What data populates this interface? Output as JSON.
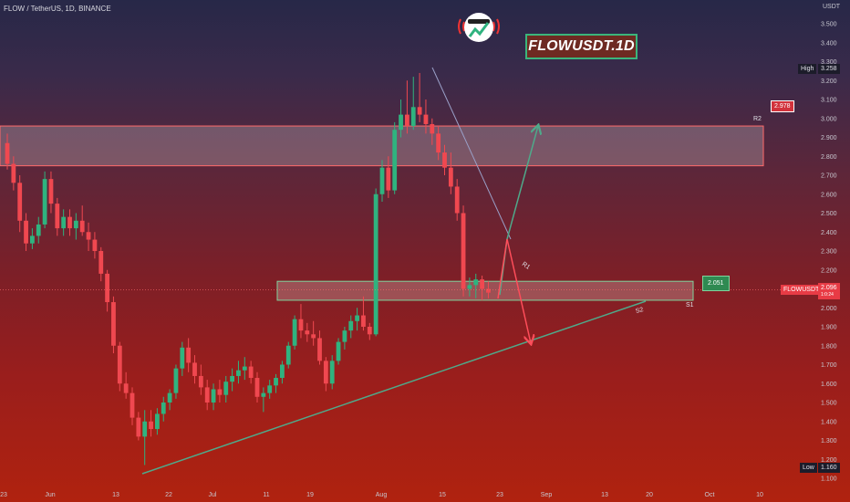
{
  "header": {
    "title": "FLOW / TetherUS, 1D, BINANCE"
  },
  "badge": {
    "text": "FLOWUSDT.1D"
  },
  "axis": {
    "unit": "USDT",
    "y_ticks": [
      "1.100",
      "1.200",
      "1.300",
      "1.400",
      "1.500",
      "1.600",
      "1.700",
      "1.800",
      "1.900",
      "2.000",
      "2.100",
      "2.200",
      "2.300",
      "2.400",
      "2.500",
      "2.600",
      "2.700",
      "2.800",
      "2.900",
      "3.000",
      "3.100",
      "3.200",
      "3.300",
      "3.400",
      "3.500"
    ],
    "x_ticks": [
      "23",
      "Jun",
      "13",
      "22",
      "Jul",
      "11",
      "19",
      "Aug",
      "15",
      "23",
      "Sep",
      "13",
      "20",
      "Oct",
      "10"
    ]
  },
  "markers": {
    "high_label": "High",
    "high_value": "3.258",
    "low_label": "Low",
    "low_value": "1.160",
    "symbol_tag": "FLOWUSDT",
    "last_price": "2.096",
    "last_price_sub": "1:0:24",
    "r2_label": "R2",
    "r2_value": "2.978",
    "s1_label": "S1",
    "s1_value": "2.051",
    "s2_label": "S2",
    "r1_label": "R1"
  },
  "colors": {
    "up": "#2fb37f",
    "down": "#f04850",
    "zone_fill": "#ffffff",
    "trend": "#4fa98a",
    "arrow_up": "#4fa98a",
    "arrow_down": "#ff4d5a"
  },
  "chart_data": {
    "type": "candlestick",
    "title": "FLOW / TetherUS, 1D, BINANCE",
    "ylabel": "USDT",
    "ylim": [
      1.1,
      3.5
    ],
    "scale": "linear",
    "grid": false,
    "price_high": 3.258,
    "price_low": 1.16,
    "last_price": 2.096,
    "zones": [
      {
        "name": "R2 resistance",
        "from": 2.75,
        "to": 2.96
      },
      {
        "name": "S1 support",
        "from": 2.04,
        "to": 2.14
      }
    ],
    "levels": {
      "R2": 2.978,
      "S1": 2.051
    },
    "series": [
      {
        "ohlc": [
          [
            2.87,
            2.92,
            2.73,
            2.76
          ],
          [
            2.76,
            2.8,
            2.62,
            2.66
          ],
          [
            2.66,
            2.7,
            2.4,
            2.46
          ],
          [
            2.46,
            2.5,
            2.3,
            2.34
          ],
          [
            2.34,
            2.42,
            2.31,
            2.38
          ],
          [
            2.38,
            2.48,
            2.34,
            2.44
          ],
          [
            2.44,
            2.72,
            2.42,
            2.68
          ],
          [
            2.68,
            2.72,
            2.5,
            2.55
          ],
          [
            2.55,
            2.58,
            2.38,
            2.42
          ],
          [
            2.42,
            2.52,
            2.38,
            2.48
          ],
          [
            2.48,
            2.52,
            2.38,
            2.42
          ],
          [
            2.42,
            2.5,
            2.36,
            2.46
          ],
          [
            2.46,
            2.54,
            2.38,
            2.4
          ],
          [
            2.4,
            2.45,
            2.3,
            2.36
          ],
          [
            2.36,
            2.4,
            2.26,
            2.3
          ],
          [
            2.3,
            2.32,
            2.14,
            2.18
          ],
          [
            2.18,
            2.2,
            1.98,
            2.03
          ],
          [
            2.03,
            2.06,
            1.76,
            1.8
          ],
          [
            1.8,
            1.82,
            1.56,
            1.6
          ],
          [
            1.6,
            1.66,
            1.52,
            1.55
          ],
          [
            1.55,
            1.58,
            1.38,
            1.42
          ],
          [
            1.42,
            1.45,
            1.3,
            1.32
          ],
          [
            1.32,
            1.46,
            1.17,
            1.4
          ],
          [
            1.4,
            1.46,
            1.32,
            1.36
          ],
          [
            1.36,
            1.47,
            1.33,
            1.44
          ],
          [
            1.44,
            1.53,
            1.4,
            1.5
          ],
          [
            1.5,
            1.57,
            1.46,
            1.55
          ],
          [
            1.55,
            1.7,
            1.52,
            1.68
          ],
          [
            1.68,
            1.82,
            1.64,
            1.79
          ],
          [
            1.79,
            1.84,
            1.66,
            1.71
          ],
          [
            1.71,
            1.75,
            1.6,
            1.64
          ],
          [
            1.64,
            1.7,
            1.54,
            1.58
          ],
          [
            1.58,
            1.62,
            1.46,
            1.5
          ],
          [
            1.5,
            1.6,
            1.46,
            1.57
          ],
          [
            1.57,
            1.62,
            1.5,
            1.54
          ],
          [
            1.54,
            1.64,
            1.5,
            1.61
          ],
          [
            1.61,
            1.68,
            1.56,
            1.64
          ],
          [
            1.64,
            1.72,
            1.6,
            1.67
          ],
          [
            1.67,
            1.74,
            1.62,
            1.69
          ],
          [
            1.69,
            1.72,
            1.6,
            1.63
          ],
          [
            1.63,
            1.66,
            1.5,
            1.53
          ],
          [
            1.53,
            1.58,
            1.45,
            1.55
          ],
          [
            1.55,
            1.62,
            1.52,
            1.59
          ],
          [
            1.59,
            1.65,
            1.55,
            1.63
          ],
          [
            1.63,
            1.72,
            1.6,
            1.7
          ],
          [
            1.7,
            1.82,
            1.68,
            1.8
          ],
          [
            1.8,
            1.96,
            1.78,
            1.94
          ],
          [
            1.94,
            2.02,
            1.84,
            1.88
          ],
          [
            1.88,
            1.92,
            1.82,
            1.86
          ],
          [
            1.86,
            1.93,
            1.8,
            1.84
          ],
          [
            1.84,
            1.88,
            1.7,
            1.72
          ],
          [
            1.72,
            1.74,
            1.56,
            1.6
          ],
          [
            1.6,
            1.75,
            1.57,
            1.72
          ],
          [
            1.72,
            1.84,
            1.7,
            1.82
          ],
          [
            1.82,
            1.9,
            1.78,
            1.88
          ],
          [
            1.88,
            1.96,
            1.84,
            1.93
          ],
          [
            1.93,
            2.0,
            1.88,
            1.96
          ],
          [
            1.96,
            2.06,
            1.88,
            1.9
          ],
          [
            1.9,
            1.92,
            1.83,
            1.86
          ],
          [
            1.86,
            2.63,
            1.85,
            2.6
          ],
          [
            2.6,
            2.78,
            2.56,
            2.74
          ],
          [
            2.74,
            2.8,
            2.58,
            2.62
          ],
          [
            2.62,
            2.98,
            2.6,
            2.94
          ],
          [
            2.94,
            3.1,
            2.9,
            3.02
          ],
          [
            3.02,
            3.2,
            2.92,
            2.96
          ],
          [
            2.96,
            3.22,
            2.94,
            3.06
          ],
          [
            3.06,
            3.24,
            2.98,
            3.02
          ],
          [
            3.02,
            3.1,
            2.92,
            2.97
          ],
          [
            2.97,
            3.0,
            2.86,
            2.92
          ],
          [
            2.92,
            2.96,
            2.78,
            2.82
          ],
          [
            2.82,
            2.86,
            2.7,
            2.74
          ],
          [
            2.74,
            2.82,
            2.6,
            2.64
          ],
          [
            2.64,
            2.68,
            2.46,
            2.5
          ],
          [
            2.5,
            2.54,
            2.06,
            2.1
          ],
          [
            2.1,
            2.16,
            2.06,
            2.12
          ],
          [
            2.12,
            2.18,
            2.05,
            2.15
          ],
          [
            2.15,
            2.17,
            2.04,
            2.1
          ],
          [
            2.1,
            2.14,
            2.05,
            2.08
          ]
        ]
      }
    ]
  }
}
